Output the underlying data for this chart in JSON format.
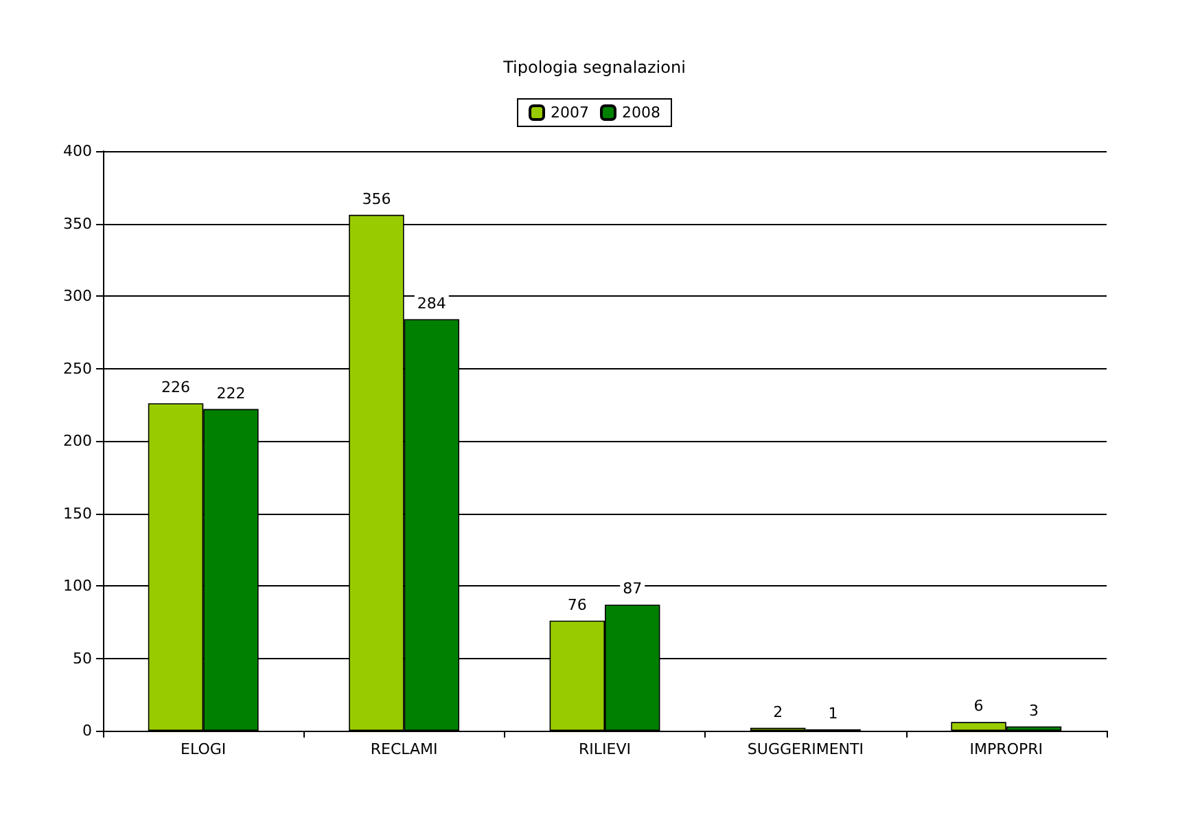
{
  "chart_data": {
    "type": "bar",
    "title": "Tipologia segnalazioni",
    "categories": [
      "ELOGI",
      "RECLAMI",
      "RILIEVI",
      "SUGGERIMENTI",
      "IMPROPRI"
    ],
    "series": [
      {
        "name": "2007",
        "color": "#99cc00",
        "values": [
          226,
          356,
          76,
          2,
          6
        ]
      },
      {
        "name": "2008",
        "color": "#008000",
        "values": [
          222,
          284,
          87,
          1,
          3
        ]
      }
    ],
    "ylim": [
      0,
      400
    ],
    "yticks": [
      0,
      50,
      100,
      150,
      200,
      250,
      300,
      350,
      400
    ],
    "grid": "y",
    "legend": "top",
    "data_labels": true
  }
}
